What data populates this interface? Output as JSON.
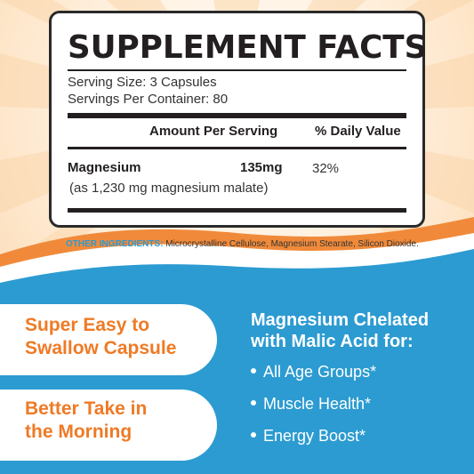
{
  "facts": {
    "title": "SUPPLEMENT FACTS",
    "serving_size": "Serving Size: 3 Capsules",
    "servings_per_container": "Servings Per Container: 80",
    "col_amount": "Amount Per Serving",
    "col_dv": "% Daily Value",
    "nutrient": {
      "name": "Magnesium",
      "amount": "135mg",
      "dv": "32%",
      "source": "(as 1,230 mg magnesium malate)"
    }
  },
  "other_ingredients": {
    "label": "OTHER INGREDIENTS:",
    "text": "Microcrystalline Cellulose, Magnesium Stearate, Silicon Dioxide."
  },
  "features": [
    {
      "line1": "Super Easy to",
      "line2": "Swallow Capsule"
    },
    {
      "line1": "Better Take in",
      "line2": "the Morning"
    }
  ],
  "benefits": {
    "title_line1": "Magnesium Chelated",
    "title_line2": "with Malic Acid for:",
    "items": [
      "All Age Groups*",
      "Muscle Health*",
      "Energy Boost*"
    ]
  },
  "colors": {
    "accent_orange": "#ef7a25",
    "accent_blue": "#2c9bd1",
    "text_dark": "#231f20"
  }
}
